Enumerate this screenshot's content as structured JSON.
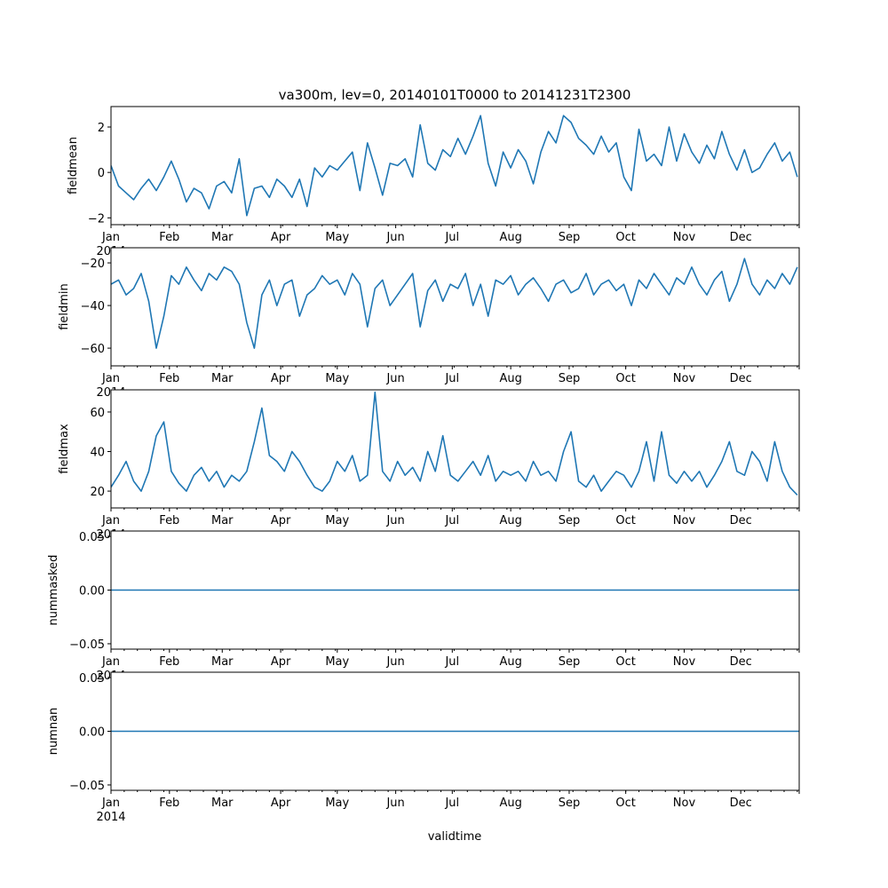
{
  "chart_data": {
    "type": "line",
    "title": "va300m, lev=0, 20140101T0000 to 20141231T2300",
    "xlabel": "validtime",
    "x_unit": "day of year 2014",
    "x": [
      0,
      4,
      8,
      12,
      16,
      20,
      24,
      28,
      32,
      36,
      40,
      44,
      48,
      52,
      56,
      60,
      64,
      68,
      72,
      76,
      80,
      84,
      88,
      92,
      96,
      100,
      104,
      108,
      112,
      116,
      120,
      124,
      128,
      132,
      136,
      140,
      144,
      148,
      152,
      156,
      160,
      164,
      168,
      172,
      176,
      180,
      184,
      188,
      192,
      196,
      200,
      204,
      208,
      212,
      216,
      220,
      224,
      228,
      232,
      236,
      240,
      244,
      248,
      252,
      256,
      260,
      264,
      268,
      272,
      276,
      280,
      284,
      288,
      292,
      296,
      300,
      304,
      308,
      312,
      316,
      320,
      324,
      328,
      332,
      336,
      340,
      344,
      348,
      352,
      356,
      360,
      364
    ],
    "xlim": [
      0,
      365
    ],
    "x_tick_labels": [
      "Jan",
      "Feb",
      "Mar",
      "Apr",
      "May",
      "Jun",
      "Jul",
      "Aug",
      "Sep",
      "Oct",
      "Nov",
      "Dec"
    ],
    "x_tick_days": [
      0,
      31,
      59,
      90,
      120,
      151,
      181,
      212,
      243,
      273,
      304,
      334
    ],
    "year_label": "2014",
    "color": "#1f77b4",
    "panels": [
      {
        "ylabel": "fieldmean",
        "ylim": [
          -2.3,
          2.9
        ],
        "yticks": [
          -2,
          0,
          2
        ],
        "ytick_labels": [
          "−2",
          "0",
          "2"
        ],
        "values": [
          0.3,
          -0.6,
          -0.9,
          -1.2,
          -0.7,
          -0.3,
          -0.8,
          -0.2,
          0.5,
          -0.3,
          -1.3,
          -0.7,
          -0.9,
          -1.6,
          -0.6,
          -0.4,
          -0.9,
          0.6,
          -1.9,
          -0.7,
          -0.6,
          -1.1,
          -0.3,
          -0.6,
          -1.1,
          -0.3,
          -1.5,
          0.2,
          -0.2,
          0.3,
          0.1,
          0.5,
          0.9,
          -0.8,
          1.3,
          0.2,
          -1.0,
          0.4,
          0.3,
          0.6,
          -0.2,
          2.1,
          0.4,
          0.1,
          1.0,
          0.7,
          1.5,
          0.8,
          1.6,
          2.5,
          0.4,
          -0.6,
          0.9,
          0.2,
          1.0,
          0.5,
          -0.5,
          0.9,
          1.8,
          1.3,
          2.5,
          2.2,
          1.5,
          1.2,
          0.8,
          1.6,
          0.9,
          1.3,
          -0.2,
          -0.8,
          1.9,
          0.5,
          0.8,
          0.3,
          2.0,
          0.5,
          1.7,
          0.9,
          0.4,
          1.2,
          0.6,
          1.8,
          0.8,
          0.1,
          1.0,
          0.0,
          0.2,
          0.8,
          1.3,
          0.5,
          0.9,
          -0.2
        ]
      },
      {
        "ylabel": "fieldmin",
        "ylim": [
          -68.3,
          -12.9
        ],
        "yticks": [
          -60,
          -40,
          -20
        ],
        "ytick_labels": [
          "−60",
          "−40",
          "−20"
        ],
        "values": [
          -30,
          -28,
          -35,
          -32,
          -25,
          -38,
          -60,
          -45,
          -26,
          -30,
          -22,
          -28,
          -33,
          -25,
          -28,
          -22,
          -24,
          -30,
          -48,
          -60,
          -35,
          -28,
          -40,
          -30,
          -28,
          -45,
          -35,
          -32,
          -26,
          -30,
          -28,
          -35,
          -25,
          -30,
          -50,
          -32,
          -28,
          -40,
          -35,
          -30,
          -25,
          -50,
          -33,
          -28,
          -38,
          -30,
          -32,
          -25,
          -40,
          -30,
          -45,
          -28,
          -30,
          -26,
          -35,
          -30,
          -27,
          -32,
          -38,
          -30,
          -28,
          -34,
          -32,
          -25,
          -35,
          -30,
          -28,
          -33,
          -30,
          -40,
          -28,
          -32,
          -25,
          -30,
          -35,
          -27,
          -30,
          -22,
          -30,
          -35,
          -28,
          -24,
          -38,
          -30,
          -18,
          -30,
          -35,
          -28,
          -32,
          -25,
          -30,
          -22
        ]
      },
      {
        "ylabel": "fieldmax",
        "ylim": [
          11.5,
          71.2
        ],
        "yticks": [
          20,
          40,
          60
        ],
        "ytick_labels": [
          "20",
          "40",
          "60"
        ],
        "values": [
          22,
          28,
          35,
          25,
          20,
          30,
          48,
          55,
          30,
          24,
          20,
          28,
          32,
          25,
          30,
          22,
          28,
          25,
          30,
          45,
          62,
          38,
          35,
          30,
          40,
          35,
          28,
          22,
          20,
          25,
          35,
          30,
          38,
          25,
          28,
          70,
          30,
          25,
          35,
          28,
          32,
          25,
          40,
          30,
          48,
          28,
          25,
          30,
          35,
          28,
          38,
          25,
          30,
          28,
          30,
          25,
          35,
          28,
          30,
          25,
          40,
          50,
          25,
          22,
          28,
          20,
          25,
          30,
          28,
          22,
          30,
          45,
          25,
          50,
          28,
          24,
          30,
          25,
          30,
          22,
          28,
          35,
          45,
          30,
          28,
          40,
          35,
          25,
          45,
          30,
          22,
          18
        ]
      },
      {
        "ylabel": "nummasked",
        "ylim": [
          -0.055,
          0.055
        ],
        "yticks": [
          -0.05,
          0,
          0.05
        ],
        "ytick_labels": [
          "−0.05",
          "0.00",
          "0.05"
        ],
        "constant": 0
      },
      {
        "ylabel": "numnan",
        "ylim": [
          -0.055,
          0.055
        ],
        "yticks": [
          -0.05,
          0,
          0.05
        ],
        "ytick_labels": [
          "−0.05",
          "0.00",
          "0.05"
        ],
        "constant": 0
      }
    ]
  }
}
